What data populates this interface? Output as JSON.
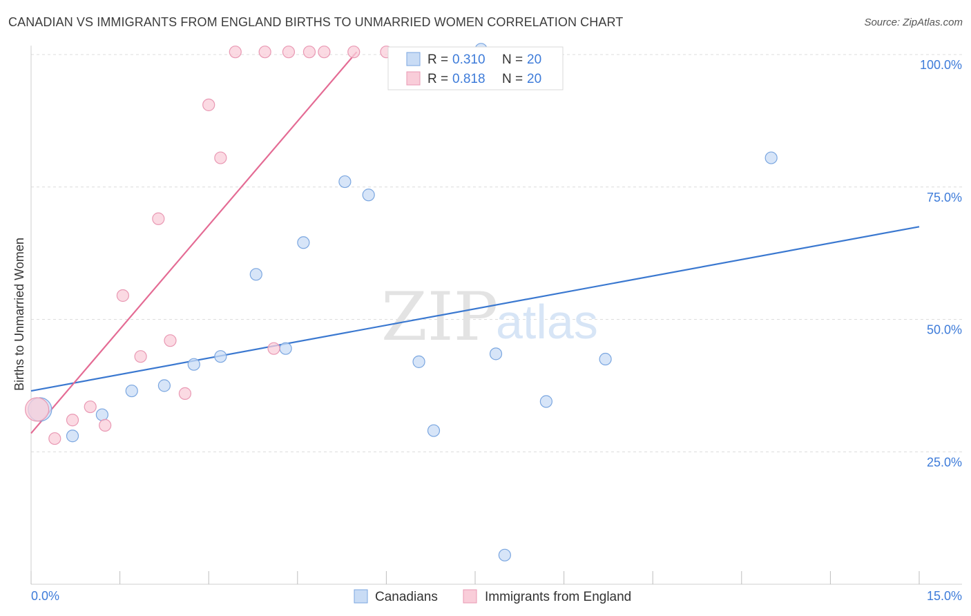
{
  "title": "CANADIAN VS IMMIGRANTS FROM ENGLAND BIRTHS TO UNMARRIED WOMEN CORRELATION CHART",
  "source": "Source: ZipAtlas.com",
  "watermark": {
    "zip": "ZIP",
    "atlas": "atlas"
  },
  "colors": {
    "blue": "#3a78d0",
    "blue_fill": "#c9dcf5",
    "pink": "#e46b94",
    "pink_fill": "#f9cdd9",
    "tick_text": "#3d7bd9"
  },
  "legend_box": [
    {
      "r_label": "R = ",
      "r_value": "0.310",
      "n_label": "N = ",
      "n_value": "20"
    },
    {
      "r_label": "R = ",
      "r_value": "0.818",
      "n_label": "N = ",
      "n_value": "20"
    }
  ],
  "chart_data": {
    "type": "scatter",
    "title": "CANADIAN VS IMMIGRANTS FROM ENGLAND BIRTHS TO UNMARRIED WOMEN CORRELATION CHART",
    "xlabel": "",
    "ylabel": "Births to Unmarried Women",
    "xlim": [
      0,
      15
    ],
    "ylim": [
      0,
      100
    ],
    "x_tick_labels": [
      "0.0%",
      "15.0%"
    ],
    "y_ticks": [
      25,
      50,
      75,
      100
    ],
    "y_tick_labels": [
      "25.0%",
      "50.0%",
      "75.0%",
      "100.0%"
    ],
    "series": [
      {
        "name": "Canadians",
        "color": "#3a78d0",
        "points": [
          {
            "x": 0.15,
            "y": 33.0,
            "big": true
          },
          {
            "x": 0.7,
            "y": 28.0
          },
          {
            "x": 1.2,
            "y": 32.0
          },
          {
            "x": 1.7,
            "y": 36.5
          },
          {
            "x": 2.25,
            "y": 37.5
          },
          {
            "x": 2.75,
            "y": 41.5
          },
          {
            "x": 3.2,
            "y": 43.0
          },
          {
            "x": 3.8,
            "y": 58.5
          },
          {
            "x": 4.3,
            "y": 44.5
          },
          {
            "x": 4.6,
            "y": 64.5
          },
          {
            "x": 5.3,
            "y": 76.0
          },
          {
            "x": 5.7,
            "y": 73.5
          },
          {
            "x": 6.55,
            "y": 42.0
          },
          {
            "x": 6.8,
            "y": 29.0
          },
          {
            "x": 7.6,
            "y": 101.0
          },
          {
            "x": 7.85,
            "y": 43.5
          },
          {
            "x": 8.0,
            "y": 5.5
          },
          {
            "x": 8.7,
            "y": 34.5
          },
          {
            "x": 9.7,
            "y": 42.5
          },
          {
            "x": 12.5,
            "y": 80.5
          }
        ],
        "trend": {
          "x": [
            0,
            15
          ],
          "y": [
            36.5,
            67.5
          ]
        }
      },
      {
        "name": "Immigrants from England",
        "color": "#e46b94",
        "points": [
          {
            "x": 0.1,
            "y": 33.0,
            "big": true
          },
          {
            "x": 0.4,
            "y": 27.5
          },
          {
            "x": 0.7,
            "y": 31.0
          },
          {
            "x": 1.0,
            "y": 33.5
          },
          {
            "x": 1.25,
            "y": 30.0
          },
          {
            "x": 1.55,
            "y": 54.5
          },
          {
            "x": 1.85,
            "y": 43.0
          },
          {
            "x": 2.15,
            "y": 69.0
          },
          {
            "x": 2.35,
            "y": 46.0
          },
          {
            "x": 2.6,
            "y": 36.0
          },
          {
            "x": 3.0,
            "y": 90.5
          },
          {
            "x": 3.2,
            "y": 80.5
          },
          {
            "x": 3.45,
            "y": 100.5
          },
          {
            "x": 3.95,
            "y": 100.5
          },
          {
            "x": 4.1,
            "y": 44.5
          },
          {
            "x": 4.35,
            "y": 100.5
          },
          {
            "x": 4.7,
            "y": 100.5
          },
          {
            "x": 4.95,
            "y": 100.5
          },
          {
            "x": 5.45,
            "y": 100.5
          },
          {
            "x": 6.0,
            "y": 100.5
          }
        ],
        "trend": {
          "x": [
            0,
            5.5
          ],
          "y": [
            28.5,
            100.5
          ]
        }
      }
    ],
    "legend": [
      "Canadians",
      "Immigrants from England"
    ],
    "legend_position": "bottom-center"
  }
}
